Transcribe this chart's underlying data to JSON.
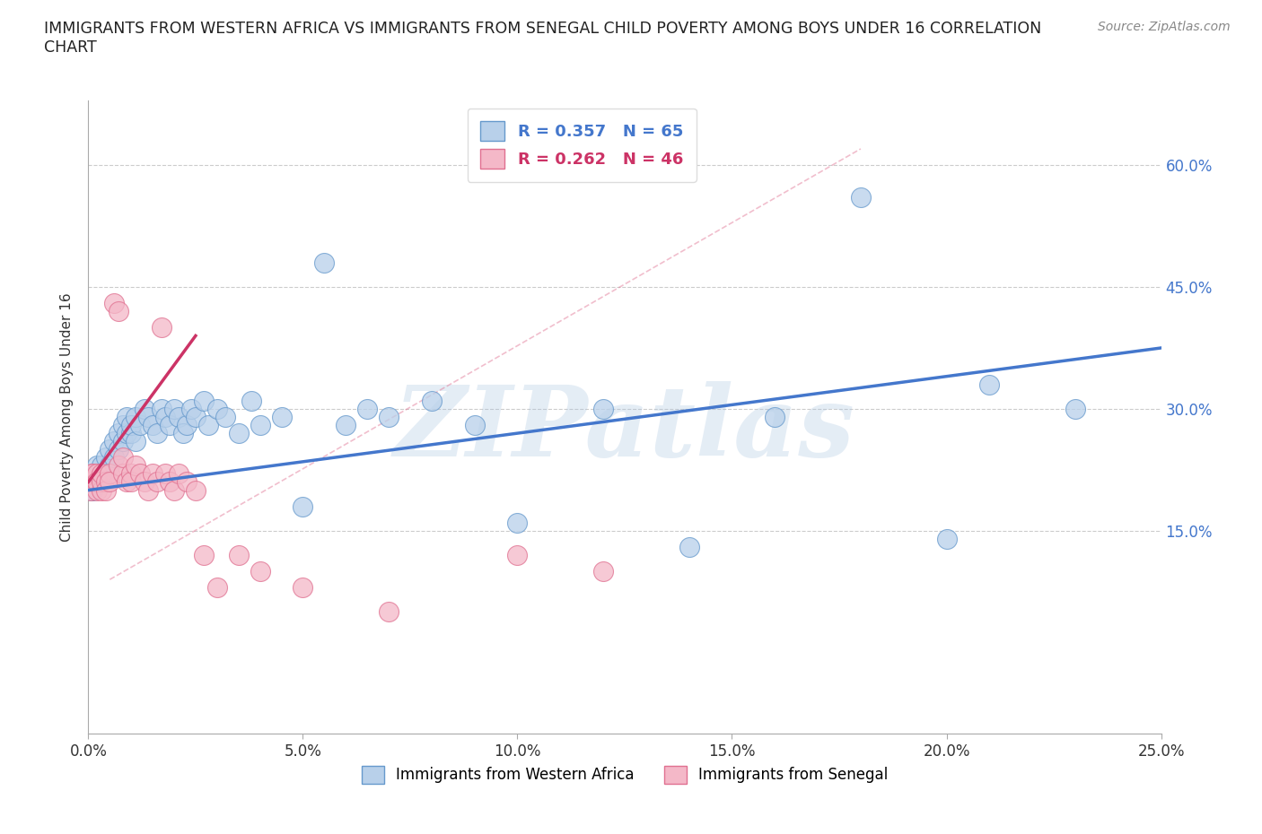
{
  "title": "IMMIGRANTS FROM WESTERN AFRICA VS IMMIGRANTS FROM SENEGAL CHILD POVERTY AMONG BOYS UNDER 16 CORRELATION\nCHART",
  "source_text": "Source: ZipAtlas.com",
  "ylabel": "Child Poverty Among Boys Under 16",
  "watermark": "ZIPatlas",
  "xlim": [
    0.0,
    0.25
  ],
  "ylim": [
    -0.1,
    0.68
  ],
  "yticks": [
    0.15,
    0.3,
    0.45,
    0.6
  ],
  "xticks": [
    0.0,
    0.05,
    0.1,
    0.15,
    0.2,
    0.25
  ],
  "series1_label": "Immigrants from Western Africa",
  "series2_label": "Immigrants from Senegal",
  "series1_color": "#b8d0ea",
  "series2_color": "#f4b8c8",
  "series1_edge": "#6699cc",
  "series2_edge": "#e07090",
  "line1_color": "#4477cc",
  "line2_color": "#cc3366",
  "R1": 0.357,
  "N1": 65,
  "R2": 0.262,
  "N2": 46,
  "western_africa_x": [
    0.0005,
    0.0007,
    0.001,
    0.001,
    0.001,
    0.002,
    0.002,
    0.002,
    0.002,
    0.003,
    0.003,
    0.003,
    0.004,
    0.004,
    0.005,
    0.005,
    0.006,
    0.006,
    0.007,
    0.007,
    0.008,
    0.008,
    0.009,
    0.009,
    0.01,
    0.01,
    0.011,
    0.011,
    0.012,
    0.013,
    0.014,
    0.015,
    0.016,
    0.017,
    0.018,
    0.019,
    0.02,
    0.021,
    0.022,
    0.023,
    0.024,
    0.025,
    0.027,
    0.028,
    0.03,
    0.032,
    0.035,
    0.038,
    0.04,
    0.045,
    0.05,
    0.055,
    0.06,
    0.065,
    0.07,
    0.08,
    0.09,
    0.1,
    0.12,
    0.14,
    0.16,
    0.18,
    0.2,
    0.21,
    0.23
  ],
  "western_africa_y": [
    0.21,
    0.2,
    0.22,
    0.21,
    0.2,
    0.22,
    0.21,
    0.22,
    0.23,
    0.21,
    0.23,
    0.22,
    0.24,
    0.22,
    0.23,
    0.25,
    0.24,
    0.26,
    0.25,
    0.27,
    0.26,
    0.28,
    0.27,
    0.29,
    0.27,
    0.28,
    0.26,
    0.29,
    0.28,
    0.3,
    0.29,
    0.28,
    0.27,
    0.3,
    0.29,
    0.28,
    0.3,
    0.29,
    0.27,
    0.28,
    0.3,
    0.29,
    0.31,
    0.28,
    0.3,
    0.29,
    0.27,
    0.31,
    0.28,
    0.29,
    0.18,
    0.48,
    0.28,
    0.3,
    0.29,
    0.31,
    0.28,
    0.16,
    0.3,
    0.13,
    0.29,
    0.56,
    0.14,
    0.33,
    0.3
  ],
  "senegal_x": [
    0.0003,
    0.0005,
    0.0007,
    0.001,
    0.001,
    0.001,
    0.002,
    0.002,
    0.002,
    0.002,
    0.003,
    0.003,
    0.003,
    0.004,
    0.004,
    0.005,
    0.005,
    0.006,
    0.007,
    0.007,
    0.008,
    0.008,
    0.009,
    0.01,
    0.01,
    0.011,
    0.012,
    0.013,
    0.014,
    0.015,
    0.016,
    0.017,
    0.018,
    0.019,
    0.02,
    0.021,
    0.023,
    0.025,
    0.027,
    0.03,
    0.035,
    0.04,
    0.05,
    0.07,
    0.1,
    0.12
  ],
  "senegal_y": [
    0.21,
    0.2,
    0.21,
    0.22,
    0.21,
    0.22,
    0.21,
    0.2,
    0.22,
    0.21,
    0.2,
    0.21,
    0.22,
    0.21,
    0.2,
    0.22,
    0.21,
    0.43,
    0.42,
    0.23,
    0.22,
    0.24,
    0.21,
    0.22,
    0.21,
    0.23,
    0.22,
    0.21,
    0.2,
    0.22,
    0.21,
    0.4,
    0.22,
    0.21,
    0.2,
    0.22,
    0.21,
    0.2,
    0.12,
    0.08,
    0.12,
    0.1,
    0.08,
    0.05,
    0.12,
    0.1
  ],
  "dash_line_x": [
    0.005,
    0.18
  ],
  "dash_line_y": [
    0.09,
    0.62
  ],
  "reg_line1_x0": 0.0,
  "reg_line1_y0": 0.2,
  "reg_line1_x1": 0.25,
  "reg_line1_y1": 0.375,
  "reg_line2_x0": 0.0,
  "reg_line2_y0": 0.21,
  "reg_line2_x1": 0.025,
  "reg_line2_y1": 0.39
}
